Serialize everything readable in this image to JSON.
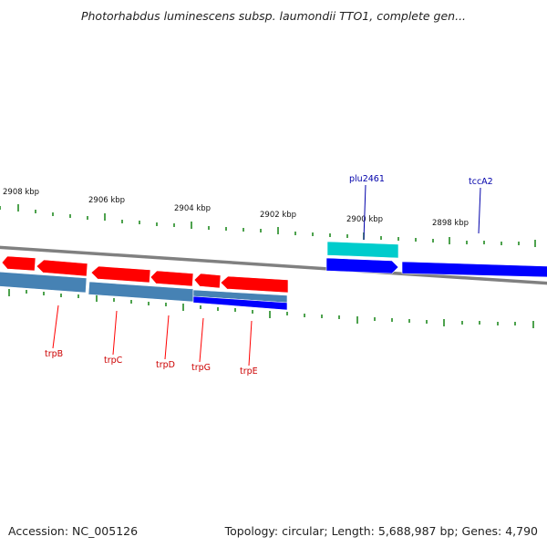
{
  "header": {
    "title": "Photorhabdus luminescens subsp. laumondii TTO1, complete gen..."
  },
  "footer": {
    "accession": "Accession: NC_005126",
    "topology": "Topology: circular; Length: 5,688,987 bp; Genes: 4,790"
  },
  "map": {
    "kbp_labels": [
      "2908 kbp",
      "2906 kbp",
      "2904 kbp",
      "2902 kbp",
      "2900 kbp",
      "2898 kbp"
    ],
    "genes_reverse": [
      "trpB",
      "trpC",
      "trpD",
      "trpG",
      "trpE"
    ],
    "genes_forward": [
      "plu2461",
      "tccA2"
    ]
  },
  "colors": {
    "reverse_gene": "#ff0000",
    "reverse_cds": "#4682b4",
    "forward_gene": "#0000ff",
    "forward_misc": "#00cccc",
    "tick": "#228b22",
    "backbone": "#808080"
  }
}
